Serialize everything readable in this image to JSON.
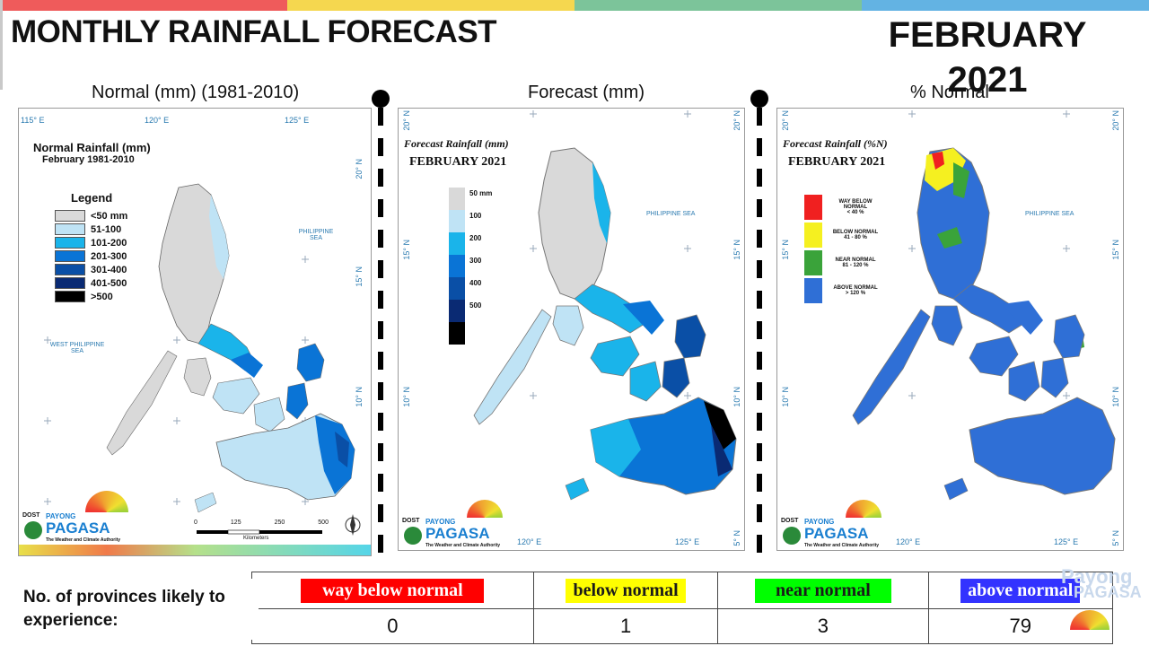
{
  "header": {
    "title": "MONTHLY RAINFALL FORECAST",
    "month": "FEBRUARY",
    "year": "2021",
    "bar_colors": [
      "#ef5b5b",
      "#f5d74f",
      "#7cc49a",
      "#63b3e3"
    ]
  },
  "panels": [
    {
      "caption": "Normal (mm) (1981-2010)",
      "map_title": "Normal Rainfall (mm)",
      "map_subtitle": "February 1981-2010",
      "legend_title": "Legend",
      "legend": [
        {
          "label": "<50 mm",
          "color": "#d9d9d9"
        },
        {
          "label": "51-100",
          "color": "#bfe3f5"
        },
        {
          "label": "101-200",
          "color": "#1ab4ea"
        },
        {
          "label": "201-300",
          "color": "#0a74d6"
        },
        {
          "label": "301-400",
          "color": "#0a4fa6"
        },
        {
          "label": "401-500",
          "color": "#0a2a73"
        },
        {
          "label": ">500",
          "color": "#000000"
        }
      ],
      "sea_labels": [
        "PHILIPPINE SEA",
        "WEST PHILIPPINE SEA"
      ],
      "lon_labels": [
        "115° E",
        "120° E",
        "125° E"
      ],
      "lat_labels": [
        "20° N",
        "15° N",
        "10° N"
      ],
      "scale_labels": [
        "0",
        "125",
        "250",
        "500"
      ],
      "scale_unit": "Kilometers",
      "logo_dost": "DOST",
      "logo_payong": "PAYONG",
      "logo_pagasa": "PAGASA",
      "logo_tagline": "The Weather and Climate Authority"
    },
    {
      "caption": "Forecast (mm)",
      "map_title": "Forecast Rainfall (mm)",
      "map_subtitle": "FEBRUARY 2021",
      "legend": [
        {
          "label": "50 mm",
          "color": "#d9d9d9"
        },
        {
          "label": "100",
          "color": "#bfe3f5"
        },
        {
          "label": "200",
          "color": "#1ab4ea"
        },
        {
          "label": "300",
          "color": "#0a74d6"
        },
        {
          "label": "400",
          "color": "#0a4fa6"
        },
        {
          "label": "500",
          "color": "#0a2a73"
        },
        {
          "label": "",
          "color": "#000000"
        }
      ],
      "sea_labels": [
        "PHILIPPINE SEA"
      ],
      "lon_labels": [
        "120° E",
        "125° E"
      ],
      "lat_labels": [
        "20° N",
        "15° N",
        "10° N",
        "5° N"
      ],
      "logo_dost": "DOST",
      "logo_payong": "PAYONG",
      "logo_pagasa": "PAGASA",
      "logo_tagline": "The Weather and Climate Authority"
    },
    {
      "caption": "% Normal",
      "map_title": "Forecast Rainfall (%N)",
      "map_subtitle": "FEBRUARY 2021",
      "legend": [
        {
          "label": "WAY BELOW NORMAL",
          "sub": "< 40 %",
          "color": "#f02020"
        },
        {
          "label": "BELOW NORMAL",
          "sub": "41 - 80 %",
          "color": "#f5f020"
        },
        {
          "label": "NEAR NORMAL",
          "sub": "81 - 120 %",
          "color": "#3aa33a"
        },
        {
          "label": "ABOVE NORMAL",
          "sub": "> 120 %",
          "color": "#2f6fd6"
        }
      ],
      "sea_labels": [
        "PHILIPPINE SEA"
      ],
      "lon_labels": [
        "120° E",
        "125° E"
      ],
      "lat_labels": [
        "20° N",
        "15° N",
        "10° N",
        "5° N"
      ],
      "logo_dost": "DOST",
      "logo_payong": "PAYONG",
      "logo_pagasa": "PAGASA",
      "logo_tagline": "The Weather and Climate Authority"
    }
  ],
  "summary": {
    "label": "No. of provinces likely to experience:",
    "categories": [
      {
        "label": "way below normal",
        "count": "0",
        "bg": "#ff0000",
        "fg": "#ffffff"
      },
      {
        "label": "below normal",
        "count": "1",
        "bg": "#ffff00",
        "fg": "#1a1a1a"
      },
      {
        "label": "near normal",
        "count": "3",
        "bg": "#00ff00",
        "fg": "#1a1a1a"
      },
      {
        "label": "above normal",
        "count": "79",
        "bg": "#3333ff",
        "fg": "#ffffff"
      }
    ]
  }
}
